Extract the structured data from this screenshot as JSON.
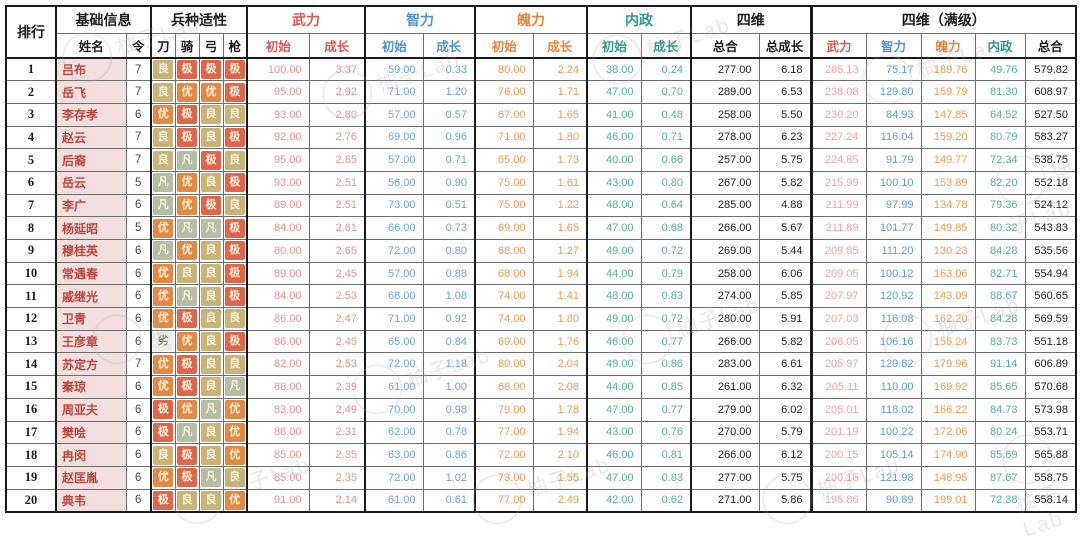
{
  "watermark": {
    "text": "柚子Lab"
  },
  "table": {
    "header": {
      "rank": "排行",
      "basic_info": "基础信息",
      "name": "姓名",
      "command": "令",
      "aptitude": "兵种适性",
      "aptitude_cols": [
        "刀",
        "骑",
        "弓",
        "枪"
      ],
      "sections": [
        {
          "label": "武力",
          "color": "#d85a52",
          "sub": [
            "初始",
            "成长"
          ]
        },
        {
          "label": "智力",
          "color": "#4e94d4",
          "sub": [
            "初始",
            "成长"
          ]
        },
        {
          "label": "魄力",
          "color": "#e5853c",
          "sub": [
            "初始",
            "成长"
          ]
        },
        {
          "label": "内政",
          "color": "#2f9a8c",
          "sub": [
            "初始",
            "成长"
          ]
        }
      ],
      "four_dims": {
        "label": "四维",
        "sub": [
          "总合",
          "总成长"
        ]
      },
      "four_dims_max": {
        "label": "四维（满级）",
        "sub": [
          "武力",
          "智力",
          "魄力",
          "内政",
          "总合"
        ],
        "sub_colors": [
          "#d85a52",
          "#4e94d4",
          "#e5853c",
          "#2f9a8c",
          "#1c1c1c"
        ]
      }
    },
    "stat_colors": [
      "#e89086",
      "#6ba3d6",
      "#eb9a55",
      "#55ad9f"
    ],
    "max_colors": [
      "#f0a39b",
      "#5b9bd5",
      "#eb9a55",
      "#55ad9f",
      "#222222"
    ],
    "grade_styles": {
      "极": {
        "bg": "#df654b",
        "fg": "#fdf3d8"
      },
      "优": {
        "bg": "#e08a45",
        "fg": "#fdf3d8"
      },
      "良": {
        "bg": "#c8b479",
        "fg": "#fdf3d8"
      },
      "凡": {
        "bg": "#b6bda5",
        "fg": "#fdf3d8"
      },
      "劣": {
        "bg": "#ecede9",
        "fg": "#8d8d86"
      }
    },
    "rows": [
      {
        "rank": "1",
        "name": "吕布",
        "command": "7",
        "aptitudes": [
          "良",
          "极",
          "极",
          "极"
        ],
        "stats": [
          "100.00",
          "3.37",
          "59.00",
          "0.33",
          "80.00",
          "2.24",
          "38.00",
          "0.24"
        ],
        "total": "277.00",
        "total_growth": "6.18",
        "max": [
          "265.13",
          "75.17",
          "189.76",
          "49.76",
          "579.82"
        ]
      },
      {
        "rank": "2",
        "name": "岳飞",
        "command": "7",
        "aptitudes": [
          "良",
          "优",
          "优",
          "极"
        ],
        "stats": [
          "95.00",
          "2.92",
          "71.00",
          "1.20",
          "76.00",
          "1.71",
          "47.00",
          "0.70"
        ],
        "total": "289.00",
        "total_growth": "6.53",
        "max": [
          "238.08",
          "129.80",
          "159.79",
          "81.30",
          "608.97"
        ]
      },
      {
        "rank": "3",
        "name": "李存孝",
        "command": "6",
        "aptitudes": [
          "优",
          "极",
          "良",
          "良"
        ],
        "stats": [
          "93.00",
          "2.80",
          "57.00",
          "0.57",
          "67.00",
          "1.65",
          "41.00",
          "0.48"
        ],
        "total": "258.00",
        "total_growth": "5.50",
        "max": [
          "230.20",
          "84.93",
          "147.85",
          "64.52",
          "527.50"
        ]
      },
      {
        "rank": "4",
        "name": "赵云",
        "command": "7",
        "aptitudes": [
          "良",
          "极",
          "良",
          "极"
        ],
        "stats": [
          "92.00",
          "2.76",
          "69.00",
          "0.96",
          "71.00",
          "1.80",
          "46.00",
          "0.71"
        ],
        "total": "278.00",
        "total_growth": "6.23",
        "max": [
          "227.24",
          "116.04",
          "159.20",
          "80.79",
          "583.27"
        ]
      },
      {
        "rank": "5",
        "name": "后裔",
        "command": "7",
        "aptitudes": [
          "良",
          "凡",
          "极",
          "良"
        ],
        "stats": [
          "95.00",
          "2.65",
          "57.00",
          "0.71",
          "65.00",
          "1.73",
          "40.00",
          "0.66"
        ],
        "total": "257.00",
        "total_growth": "5.75",
        "max": [
          "224.85",
          "91.79",
          "149.77",
          "72.34",
          "538.75"
        ]
      },
      {
        "rank": "6",
        "name": "岳云",
        "command": "5",
        "aptitudes": [
          "凡",
          "优",
          "良",
          "极"
        ],
        "stats": [
          "93.00",
          "2.51",
          "56.00",
          "0.90",
          "75.00",
          "1.61",
          "43.00",
          "0.80"
        ],
        "total": "267.00",
        "total_growth": "5.82",
        "max": [
          "215.99",
          "100.10",
          "153.89",
          "82.20",
          "552.18"
        ]
      },
      {
        "rank": "7",
        "name": "李广",
        "command": "6",
        "aptitudes": [
          "凡",
          "优",
          "极",
          "良"
        ],
        "stats": [
          "89.00",
          "2.51",
          "73.00",
          "0.51",
          "75.00",
          "1.22",
          "48.00",
          "0.64"
        ],
        "total": "285.00",
        "total_growth": "4.88",
        "max": [
          "211.99",
          "97.99",
          "134.78",
          "79.36",
          "524.12"
        ]
      },
      {
        "rank": "8",
        "name": "杨延昭",
        "command": "5",
        "aptitudes": [
          "优",
          "凡",
          "凡",
          "极"
        ],
        "stats": [
          "84.00",
          "2.61",
          "66.00",
          "0.73",
          "69.00",
          "1.65",
          "47.00",
          "0.68"
        ],
        "total": "266.00",
        "total_growth": "5.67",
        "max": [
          "211.89",
          "101.77",
          "149.85",
          "80.32",
          "543.83"
        ]
      },
      {
        "rank": "9",
        "name": "穆桂英",
        "command": "6",
        "aptitudes": [
          "凡",
          "优",
          "良",
          "极"
        ],
        "stats": [
          "80.00",
          "2.65",
          "72.00",
          "0.80",
          "68.00",
          "1.27",
          "49.00",
          "0.72"
        ],
        "total": "269.00",
        "total_growth": "5.44",
        "max": [
          "209.85",
          "111.20",
          "130.23",
          "84.28",
          "535.56"
        ]
      },
      {
        "rank": "10",
        "name": "常遇春",
        "command": "6",
        "aptitudes": [
          "优",
          "良",
          "良",
          "极"
        ],
        "stats": [
          "89.00",
          "2.45",
          "57.00",
          "0.88",
          "68.00",
          "1.94",
          "44.00",
          "0.79"
        ],
        "total": "258.00",
        "total_growth": "6.06",
        "max": [
          "209.05",
          "100.12",
          "163.06",
          "82.71",
          "554.94"
        ]
      },
      {
        "rank": "11",
        "name": "戚继光",
        "command": "6",
        "aptitudes": [
          "优",
          "凡",
          "良",
          "极"
        ],
        "stats": [
          "84.00",
          "2.53",
          "68.00",
          "1.08",
          "74.00",
          "1.41",
          "48.00",
          "0.83"
        ],
        "total": "274.00",
        "total_growth": "5.85",
        "max": [
          "207.97",
          "120.92",
          "143.09",
          "88.67",
          "560.65"
        ]
      },
      {
        "rank": "12",
        "name": "卫青",
        "command": "6",
        "aptitudes": [
          "优",
          "极",
          "良",
          "良"
        ],
        "stats": [
          "86.00",
          "2.47",
          "71.00",
          "0.92",
          "74.00",
          "1.80",
          "49.00",
          "0.72"
        ],
        "total": "280.00",
        "total_growth": "5.91",
        "max": [
          "207.03",
          "116.08",
          "162.20",
          "84.28",
          "569.59"
        ]
      },
      {
        "rank": "13",
        "name": "王彦章",
        "command": "6",
        "aptitudes": [
          "劣",
          "优",
          "良",
          "极"
        ],
        "stats": [
          "86.00",
          "2.45",
          "65.00",
          "0.84",
          "69.00",
          "1.76",
          "46.00",
          "0.77"
        ],
        "total": "266.00",
        "total_growth": "5.82",
        "max": [
          "206.05",
          "106.16",
          "155.24",
          "83.73",
          "551.18"
        ]
      },
      {
        "rank": "14",
        "name": "苏定方",
        "command": "7",
        "aptitudes": [
          "优",
          "极",
          "良",
          "良"
        ],
        "stats": [
          "82.00",
          "2.53",
          "72.00",
          "1.18",
          "80.00",
          "2.04",
          "49.00",
          "0.86"
        ],
        "total": "283.00",
        "total_growth": "6.61",
        "max": [
          "205.97",
          "129.82",
          "179.96",
          "91.14",
          "606.89"
        ]
      },
      {
        "rank": "15",
        "name": "秦琼",
        "command": "6",
        "aptitudes": [
          "优",
          "极",
          "良",
          "凡"
        ],
        "stats": [
          "88.00",
          "2.39",
          "61.00",
          "1.00",
          "68.00",
          "2.08",
          "44.00",
          "0.85"
        ],
        "total": "261.00",
        "total_growth": "6.32",
        "max": [
          "205.11",
          "110.00",
          "169.92",
          "85.65",
          "570.68"
        ]
      },
      {
        "rank": "16",
        "name": "周亚夫",
        "command": "6",
        "aptitudes": [
          "极",
          "优",
          "凡",
          "优"
        ],
        "stats": [
          "83.00",
          "2.49",
          "70.00",
          "0.98",
          "79.00",
          "1.78",
          "47.00",
          "0.77"
        ],
        "total": "279.00",
        "total_growth": "6.02",
        "max": [
          "205.01",
          "118.02",
          "166.22",
          "84.73",
          "573.98"
        ]
      },
      {
        "rank": "17",
        "name": "樊哙",
        "command": "6",
        "aptitudes": [
          "极",
          "凡",
          "良",
          "优"
        ],
        "stats": [
          "88.00",
          "2.31",
          "62.00",
          "0.78",
          "77.00",
          "1.94",
          "43.00",
          "0.76"
        ],
        "total": "270.00",
        "total_growth": "5.79",
        "max": [
          "201.19",
          "100.22",
          "172.06",
          "80.24",
          "553.71"
        ]
      },
      {
        "rank": "18",
        "name": "冉闵",
        "command": "6",
        "aptitudes": [
          "良",
          "极",
          "良",
          "优"
        ],
        "stats": [
          "85.00",
          "2.35",
          "63.00",
          "0.86",
          "72.00",
          "2.10",
          "46.00",
          "0.81"
        ],
        "total": "266.00",
        "total_growth": "6.12",
        "max": [
          "200.15",
          "105.14",
          "174.90",
          "85.69",
          "565.88"
        ]
      },
      {
        "rank": "19",
        "name": "赵匡胤",
        "command": "6",
        "aptitudes": [
          "优",
          "极",
          "凡",
          "良"
        ],
        "stats": [
          "85.00",
          "2.35",
          "72.00",
          "1.02",
          "73.00",
          "1.55",
          "47.00",
          "0.83"
        ],
        "total": "277.00",
        "total_growth": "5.75",
        "max": [
          "200.15",
          "121.98",
          "148.95",
          "87.67",
          "558.75"
        ]
      },
      {
        "rank": "20",
        "name": "典韦",
        "command": "6",
        "aptitudes": [
          "极",
          "良",
          "良",
          "优"
        ],
        "stats": [
          "91.00",
          "2.14",
          "61.00",
          "0.61",
          "77.00",
          "2.49",
          "42.00",
          "0.62"
        ],
        "total": "271.00",
        "total_growth": "5.86",
        "max": [
          "195.86",
          "90.89",
          "199.01",
          "72.38",
          "558.14"
        ]
      }
    ]
  }
}
